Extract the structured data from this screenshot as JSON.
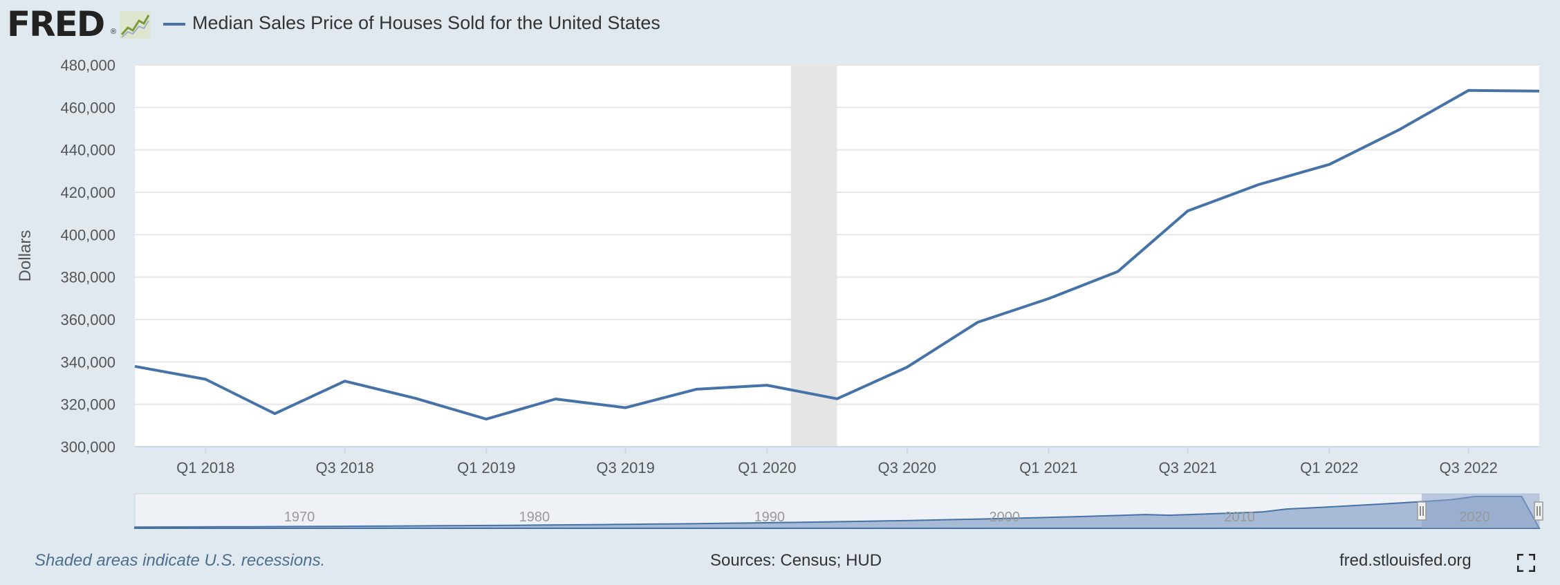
{
  "logo": {
    "text": "FRED",
    "reg_mark": "®"
  },
  "legend": {
    "series_label": "Median Sales Price of Houses Sold for the United States"
  },
  "colors": {
    "background": "#e1e9f0",
    "plot_background": "#ffffff",
    "series_line": "#4572a7",
    "recession_shade": "#e5e5e5",
    "grid": "#e6e6e6",
    "navigator_fill": "#a8bbd6",
    "navigator_selected": "#8ea6cc"
  },
  "footer": {
    "recession_note": "Shaded areas indicate U.S. recessions.",
    "sources": "Sources: Census; HUD",
    "site": "fred.stlouisfed.org"
  },
  "icons": {
    "logo_icon": "line-chart-icon",
    "fullscreen": "fullscreen-icon"
  },
  "chart_data": {
    "type": "line",
    "ylabel": "Dollars",
    "ylim": [
      300000,
      480000
    ],
    "y_ticks": [
      "300,000",
      "320,000",
      "340,000",
      "360,000",
      "380,000",
      "400,000",
      "420,000",
      "440,000",
      "460,000",
      "480,000"
    ],
    "x_ticks": [
      "Q1 2018",
      "Q3 2018",
      "Q1 2019",
      "Q3 2019",
      "Q1 2020",
      "Q3 2020",
      "Q1 2021",
      "Q3 2021",
      "Q1 2022",
      "Q3 2022"
    ],
    "grid": true,
    "legend_position": "top-left",
    "recession_shading": {
      "start": "2020-02",
      "end": "2020-04"
    },
    "series": [
      {
        "name": "Median Sales Price of Houses Sold for the United States",
        "x": [
          "2017-10-01",
          "2018-01-01",
          "2018-04-01",
          "2018-07-01",
          "2018-10-01",
          "2019-01-01",
          "2019-04-01",
          "2019-07-01",
          "2019-10-01",
          "2020-01-01",
          "2020-04-01",
          "2020-07-01",
          "2020-10-01",
          "2021-01-01",
          "2021-04-01",
          "2021-07-01",
          "2021-10-01",
          "2022-01-01",
          "2022-04-01",
          "2022-07-01",
          "2022-10-01"
        ],
        "values": [
          337900,
          331800,
          315600,
          330900,
          322800,
          313000,
          322500,
          318400,
          327100,
          329000,
          322600,
          337500,
          358700,
          369800,
          382600,
          411200,
          423600,
          433100,
          449300,
          468000,
          467700
        ]
      }
    ],
    "navigator": {
      "x_labels": [
        "1970",
        "1980",
        "1990",
        "2000",
        "2010",
        "2020"
      ],
      "selected_range": [
        "2017-10-01",
        "2022-10-01"
      ]
    }
  }
}
